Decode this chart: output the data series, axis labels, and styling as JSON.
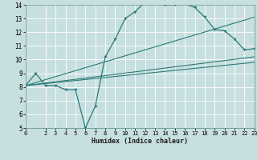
{
  "xlabel": "Humidex (Indice chaleur)",
  "xlim": [
    0,
    23
  ],
  "ylim": [
    5,
    14
  ],
  "yticks": [
    5,
    6,
    7,
    8,
    9,
    10,
    11,
    12,
    13,
    14
  ],
  "xticks": [
    0,
    2,
    3,
    4,
    5,
    6,
    7,
    8,
    9,
    10,
    11,
    12,
    13,
    14,
    15,
    16,
    17,
    18,
    19,
    20,
    21,
    22,
    23
  ],
  "bg_color": "#c8dfe0",
  "line_color": "#2a7a78",
  "grid_color": "#ffffff",
  "curve1_x": [
    0,
    1,
    2,
    3,
    4,
    5,
    6,
    7,
    8,
    9,
    10,
    11,
    12,
    13,
    14,
    15,
    16,
    17,
    18,
    19,
    20,
    21,
    22,
    23
  ],
  "curve1_y": [
    8.1,
    9.0,
    8.1,
    8.1,
    7.8,
    7.8,
    5.0,
    6.6,
    10.2,
    11.5,
    13.0,
    13.5,
    14.2,
    14.1,
    14.0,
    14.0,
    14.1,
    13.8,
    13.1,
    12.2,
    12.1,
    11.5,
    10.7,
    10.8
  ],
  "curve2_x": [
    0,
    23
  ],
  "curve2_y": [
    8.1,
    13.1
  ],
  "curve3_x": [
    0,
    23
  ],
  "curve3_y": [
    8.1,
    10.2
  ],
  "curve4_x": [
    0,
    23
  ],
  "curve4_y": [
    8.1,
    9.8
  ]
}
